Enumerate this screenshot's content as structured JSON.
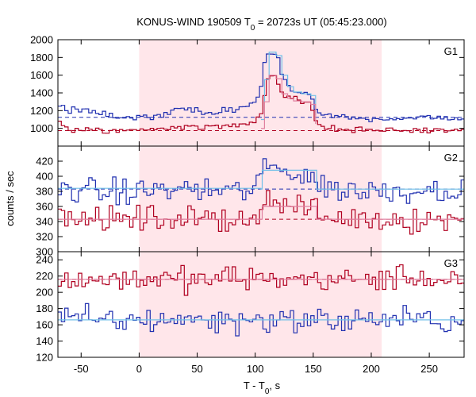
{
  "title": {
    "prefix": "KONUS-WIND 190509 T",
    "sub": "0",
    "suffix": " = 20723s UT (05:45:23.000)"
  },
  "chart_data": {
    "type": "line",
    "title": "KONUS-WIND 190509 T0 = 20723s UT (05:45:23.000)",
    "xlabel": {
      "prefix": "T - T",
      "sub": "0",
      "suffix": ", s"
    },
    "ylabel": "counts / sec",
    "xlim": [
      -70,
      280
    ],
    "xticks": [
      -50,
      0,
      50,
      100,
      150,
      200,
      250
    ],
    "highlight_interval": [
      0,
      209
    ],
    "bin_width_s": 2.944,
    "grid": false,
    "colors": {
      "total_band_hard": "#b00020",
      "total_band_soft": "#2030b0",
      "background_hard": "#e080a0",
      "background_soft": "#70c0e8",
      "highlight": "#ffe6ea"
    },
    "panels": [
      {
        "name": "G1",
        "ylim": [
          800,
          2000
        ],
        "yticks": [
          1000,
          1200,
          1400,
          1600,
          1800,
          2000
        ],
        "series": [
          {
            "color": "#2030b0",
            "background_level": 1125,
            "points": [
              [
                -70,
                1280
              ],
              [
                -60,
                1200
              ],
              [
                -40,
                1190
              ],
              [
                -20,
                1120
              ],
              [
                0,
                1110
              ],
              [
                20,
                1150
              ],
              [
                30,
                1200
              ],
              [
                40,
                1230
              ],
              [
                60,
                1180
              ],
              [
                80,
                1210
              ],
              [
                95,
                1250
              ],
              [
                100,
                1300
              ],
              [
                105,
                1450
              ],
              [
                108,
                1700
              ],
              [
                112,
                1870
              ],
              [
                118,
                1830
              ],
              [
                123,
                1620
              ],
              [
                128,
                1480
              ],
              [
                133,
                1420
              ],
              [
                140,
                1400
              ],
              [
                148,
                1380
              ],
              [
                152,
                1220
              ],
              [
                160,
                1150
              ],
              [
                180,
                1120
              ],
              [
                200,
                1110
              ],
              [
                240,
                1120
              ],
              [
                280,
                1110
              ]
            ]
          },
          {
            "color": "#b00020",
            "background_level": 975,
            "points": [
              [
                -70,
                1100
              ],
              [
                -60,
                980
              ],
              [
                -40,
                975
              ],
              [
                -20,
                970
              ],
              [
                0,
                985
              ],
              [
                20,
                1010
              ],
              [
                40,
                1020
              ],
              [
                60,
                1010
              ],
              [
                80,
                1030
              ],
              [
                95,
                1060
              ],
              [
                100,
                1080
              ],
              [
                105,
                1180
              ],
              [
                108,
                1400
              ],
              [
                112,
                1620
              ],
              [
                118,
                1580
              ],
              [
                123,
                1400
              ],
              [
                128,
                1350
              ],
              [
                133,
                1320
              ],
              [
                140,
                1310
              ],
              [
                148,
                1280
              ],
              [
                152,
                1080
              ],
              [
                160,
                1000
              ],
              [
                180,
                985
              ],
              [
                200,
                980
              ],
              [
                240,
                980
              ],
              [
                280,
                970
              ]
            ]
          },
          {
            "color": "#70c0e8",
            "points": [
              [
                105,
                1100
              ],
              [
                108,
                1550
              ],
              [
                112,
                1860
              ],
              [
                118,
                1820
              ],
              [
                123,
                1600
              ],
              [
                128,
                1470
              ],
              [
                133,
                1410
              ],
              [
                140,
                1390
              ],
              [
                148,
                1370
              ],
              [
                152,
                1150
              ]
            ]
          },
          {
            "color": "#e080a0",
            "points": [
              [
                105,
                1000
              ],
              [
                108,
                1300
              ],
              [
                112,
                1600
              ],
              [
                118,
                1560
              ],
              [
                123,
                1390
              ],
              [
                128,
                1340
              ],
              [
                133,
                1310
              ],
              [
                140,
                1300
              ],
              [
                148,
                1270
              ],
              [
                152,
                1050
              ]
            ]
          }
        ]
      },
      {
        "name": "G2",
        "ylim": [
          300,
          440
        ],
        "yticks": [
          300,
          320,
          340,
          360,
          380,
          400,
          420
        ],
        "series": [
          {
            "color": "#2030b0",
            "background_level": 383,
            "points": [
              [
                -70,
                385
              ],
              [
                -40,
                380
              ],
              [
                -10,
                378
              ],
              [
                20,
                383
              ],
              [
                50,
                382
              ],
              [
                80,
                380
              ],
              [
                100,
                383
              ],
              [
                105,
                405
              ],
              [
                115,
                412
              ],
              [
                130,
                405
              ],
              [
                150,
                402
              ],
              [
                155,
                385
              ],
              [
                200,
                380
              ],
              [
                280,
                383
              ]
            ]
          },
          {
            "color": "#b00020",
            "background_level": 343,
            "points": [
              [
                -70,
                345
              ],
              [
                -40,
                343
              ],
              [
                -10,
                342
              ],
              [
                20,
                345
              ],
              [
                50,
                343
              ],
              [
                80,
                344
              ],
              [
                100,
                346
              ],
              [
                105,
                360
              ],
              [
                115,
                368
              ],
              [
                130,
                358
              ],
              [
                150,
                360
              ],
              [
                155,
                345
              ],
              [
                200,
                343
              ],
              [
                280,
                342
              ]
            ]
          },
          {
            "color": "#70c0e8",
            "points": [
              [
                -70,
                384
              ],
              [
                105,
                383
              ],
              [
                106,
                408
              ],
              [
                152,
                408
              ],
              [
                153,
                383
              ],
              [
                280,
                383
              ]
            ]
          },
          {
            "color": "#e080a0",
            "points": [
              [
                -70,
                343
              ],
              [
                105,
                343
              ],
              [
                106,
                360
              ],
              [
                152,
                360
              ],
              [
                153,
                343
              ],
              [
                280,
                343
              ]
            ]
          }
        ]
      },
      {
        "name": "G3",
        "ylim": [
          120,
          250
        ],
        "yticks": [
          120,
          140,
          160,
          180,
          200,
          220,
          240
        ],
        "series": [
          {
            "color": "#b00020",
            "background_level": 216,
            "points": [
              [
                -70,
                218
              ],
              [
                -40,
                215
              ],
              [
                -10,
                217
              ],
              [
                20,
                216
              ],
              [
                50,
                215
              ],
              [
                80,
                218
              ],
              [
                110,
                216
              ],
              [
                140,
                217
              ],
              [
                170,
                215
              ],
              [
                200,
                216
              ],
              [
                230,
                218
              ],
              [
                280,
                216
              ]
            ]
          },
          {
            "color": "#2030b0",
            "background_level": 166,
            "points": [
              [
                -70,
                168
              ],
              [
                -40,
                166
              ],
              [
                -10,
                165
              ],
              [
                20,
                167
              ],
              [
                50,
                166
              ],
              [
                80,
                165
              ],
              [
                110,
                167
              ],
              [
                140,
                166
              ],
              [
                170,
                165
              ],
              [
                200,
                167
              ],
              [
                230,
                166
              ],
              [
                280,
                165
              ]
            ]
          },
          {
            "color": "#e080a0",
            "points": [
              [
                -70,
                216
              ],
              [
                280,
                216
              ]
            ]
          },
          {
            "color": "#70c0e8",
            "points": [
              [
                -70,
                166
              ],
              [
                280,
                166
              ]
            ]
          }
        ]
      }
    ]
  }
}
